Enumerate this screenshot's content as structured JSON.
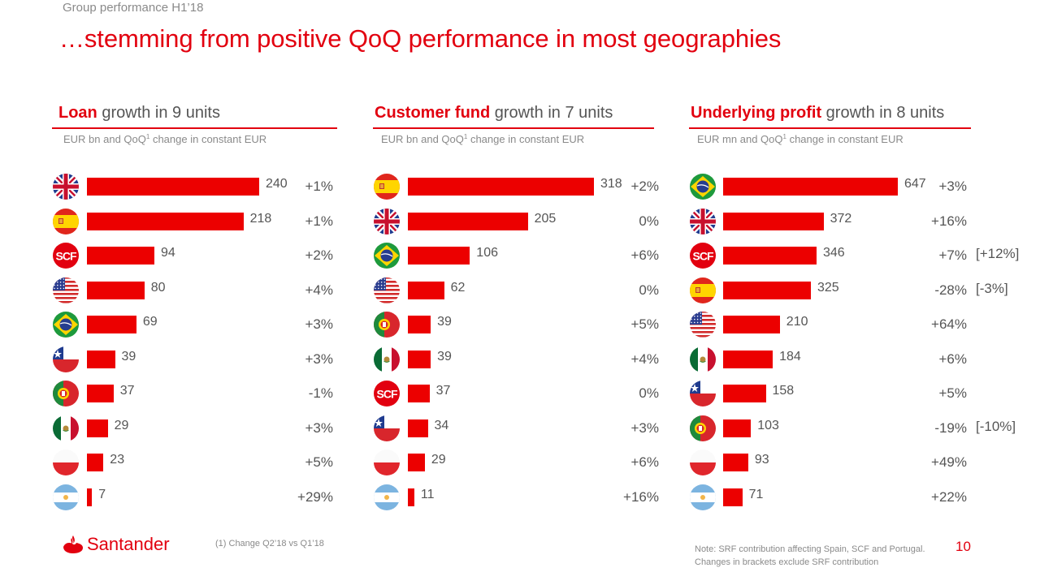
{
  "header": {
    "section": "Group performance H1’18",
    "title": "…stemming from positive QoQ performance in most geographies"
  },
  "colors": {
    "accent": "#e2000f",
    "bar": "#ec0000",
    "text": "#555555",
    "muted": "#8a8a8a"
  },
  "panels": [
    {
      "title_bold": "Loan",
      "title_rest": " growth in 9 units",
      "subtitle_pre": "EUR bn and QoQ",
      "subtitle_sup": "1",
      "subtitle_post": " change in constant EUR",
      "rows": [
        {
          "unit": "UK",
          "icon": "uk-flag-icon",
          "value": "240",
          "change": "+1%",
          "bracket": ""
        },
        {
          "unit": "Spain",
          "icon": "spain-flag-icon",
          "value": "218",
          "change": "+1%",
          "bracket": ""
        },
        {
          "unit": "SCF",
          "icon": "scf-logo-icon",
          "value": "94",
          "change": "+2%",
          "bracket": ""
        },
        {
          "unit": "US",
          "icon": "us-flag-icon",
          "value": "80",
          "change": "+4%",
          "bracket": ""
        },
        {
          "unit": "Brazil",
          "icon": "brazil-flag-icon",
          "value": "69",
          "change": "+3%",
          "bracket": ""
        },
        {
          "unit": "Chile",
          "icon": "chile-flag-icon",
          "value": "39",
          "change": "+3%",
          "bracket": ""
        },
        {
          "unit": "Portugal",
          "icon": "portugal-flag-icon",
          "value": "37",
          "change": "-1%",
          "bracket": ""
        },
        {
          "unit": "Mexico",
          "icon": "mexico-flag-icon",
          "value": "29",
          "change": "+3%",
          "bracket": ""
        },
        {
          "unit": "Poland",
          "icon": "poland-flag-icon",
          "value": "23",
          "change": "+5%",
          "bracket": ""
        },
        {
          "unit": "Argentina",
          "icon": "argentina-flag-icon",
          "value": "7",
          "change": "+29%",
          "bracket": ""
        }
      ]
    },
    {
      "title_bold": "Customer fund",
      "title_rest": " growth in 7 units",
      "subtitle_pre": "EUR bn and QoQ",
      "subtitle_sup": "1",
      "subtitle_post": " change in constant EUR",
      "rows": [
        {
          "unit": "Spain",
          "icon": "spain-flag-icon",
          "value": "318",
          "change": "+2%",
          "bracket": ""
        },
        {
          "unit": "UK",
          "icon": "uk-flag-icon",
          "value": "205",
          "change": "0%",
          "bracket": ""
        },
        {
          "unit": "Brazil",
          "icon": "brazil-flag-icon",
          "value": "106",
          "change": "+6%",
          "bracket": ""
        },
        {
          "unit": "US",
          "icon": "us-flag-icon",
          "value": "62",
          "change": "0%",
          "bracket": ""
        },
        {
          "unit": "Portugal",
          "icon": "portugal-flag-icon",
          "value": "39",
          "change": "+5%",
          "bracket": ""
        },
        {
          "unit": "Mexico",
          "icon": "mexico-flag-icon",
          "value": "39",
          "change": "+4%",
          "bracket": ""
        },
        {
          "unit": "SCF",
          "icon": "scf-logo-icon",
          "value": "37",
          "change": "0%",
          "bracket": ""
        },
        {
          "unit": "Chile",
          "icon": "chile-flag-icon",
          "value": "34",
          "change": "+3%",
          "bracket": ""
        },
        {
          "unit": "Poland",
          "icon": "poland-flag-icon",
          "value": "29",
          "change": "+6%",
          "bracket": ""
        },
        {
          "unit": "Argentina",
          "icon": "argentina-flag-icon",
          "value": "11",
          "change": "+16%",
          "bracket": ""
        }
      ]
    },
    {
      "title_bold": "Underlying profit",
      "title_rest": " growth in 8 units",
      "subtitle_pre": "EUR mn and QoQ",
      "subtitle_sup": "1",
      "subtitle_post": " change in constant EUR",
      "rows": [
        {
          "unit": "Brazil",
          "icon": "brazil-flag-icon",
          "value": "647",
          "change": "+3%",
          "bracket": ""
        },
        {
          "unit": "UK",
          "icon": "uk-flag-icon",
          "value": "372",
          "change": "+16%",
          "bracket": ""
        },
        {
          "unit": "SCF",
          "icon": "scf-logo-icon",
          "value": "346",
          "change": "+7%",
          "bracket": "[+12%]"
        },
        {
          "unit": "Spain",
          "icon": "spain-flag-icon",
          "value": "325",
          "change": "-28%",
          "bracket": "[-3%]"
        },
        {
          "unit": "US",
          "icon": "us-flag-icon",
          "value": "210",
          "change": "+64%",
          "bracket": ""
        },
        {
          "unit": "Mexico",
          "icon": "mexico-flag-icon",
          "value": "184",
          "change": "+6%",
          "bracket": ""
        },
        {
          "unit": "Chile",
          "icon": "chile-flag-icon",
          "value": "158",
          "change": "+5%",
          "bracket": ""
        },
        {
          "unit": "Portugal",
          "icon": "portugal-flag-icon",
          "value": "103",
          "change": "-19%",
          "bracket": "[-10%]"
        },
        {
          "unit": "Poland",
          "icon": "poland-flag-icon",
          "value": "93",
          "change": "+49%",
          "bracket": ""
        },
        {
          "unit": "Argentina",
          "icon": "argentina-flag-icon",
          "value": "71",
          "change": "+22%",
          "bracket": ""
        }
      ]
    }
  ],
  "footer": {
    "brand": "Santander",
    "footnote": "(1) Change Q2’18 vs Q1’18",
    "note_line1": "Note: SRF contribution affecting Spain, SCF and Portugal.",
    "note_line2": "Changes in brackets exclude SRF contribution",
    "page_number": "10"
  },
  "chart_data": [
    {
      "type": "bar",
      "orientation": "horizontal",
      "title": "Loan growth in 9 units",
      "subtitle": "EUR bn and QoQ¹ change in constant EUR",
      "categories": [
        "UK",
        "Spain",
        "SCF",
        "US",
        "Brazil",
        "Chile",
        "Portugal",
        "Mexico",
        "Poland",
        "Argentina"
      ],
      "values": [
        240,
        218,
        94,
        80,
        69,
        39,
        37,
        29,
        23,
        7
      ],
      "qoq_change_pct": [
        1,
        1,
        2,
        4,
        3,
        3,
        -1,
        3,
        5,
        29
      ],
      "unit": "EUR bn"
    },
    {
      "type": "bar",
      "orientation": "horizontal",
      "title": "Customer fund growth in 7 units",
      "subtitle": "EUR bn and QoQ¹ change in constant EUR",
      "categories": [
        "Spain",
        "UK",
        "Brazil",
        "US",
        "Portugal",
        "Mexico",
        "SCF",
        "Chile",
        "Poland",
        "Argentina"
      ],
      "values": [
        318,
        205,
        106,
        62,
        39,
        39,
        37,
        34,
        29,
        11
      ],
      "qoq_change_pct": [
        2,
        0,
        6,
        0,
        5,
        4,
        0,
        3,
        6,
        16
      ],
      "unit": "EUR bn"
    },
    {
      "type": "bar",
      "orientation": "horizontal",
      "title": "Underlying profit growth in 8 units",
      "subtitle": "EUR mn and QoQ¹ change in constant EUR",
      "categories": [
        "Brazil",
        "UK",
        "SCF",
        "Spain",
        "US",
        "Mexico",
        "Chile",
        "Portugal",
        "Poland",
        "Argentina"
      ],
      "values": [
        647,
        372,
        346,
        325,
        210,
        184,
        158,
        103,
        93,
        71
      ],
      "qoq_change_pct": [
        3,
        16,
        7,
        -28,
        64,
        6,
        5,
        -19,
        49,
        22
      ],
      "qoq_change_ex_srf_pct": [
        null,
        null,
        12,
        -3,
        null,
        null,
        null,
        -10,
        null,
        null
      ],
      "unit": "EUR mn"
    }
  ]
}
